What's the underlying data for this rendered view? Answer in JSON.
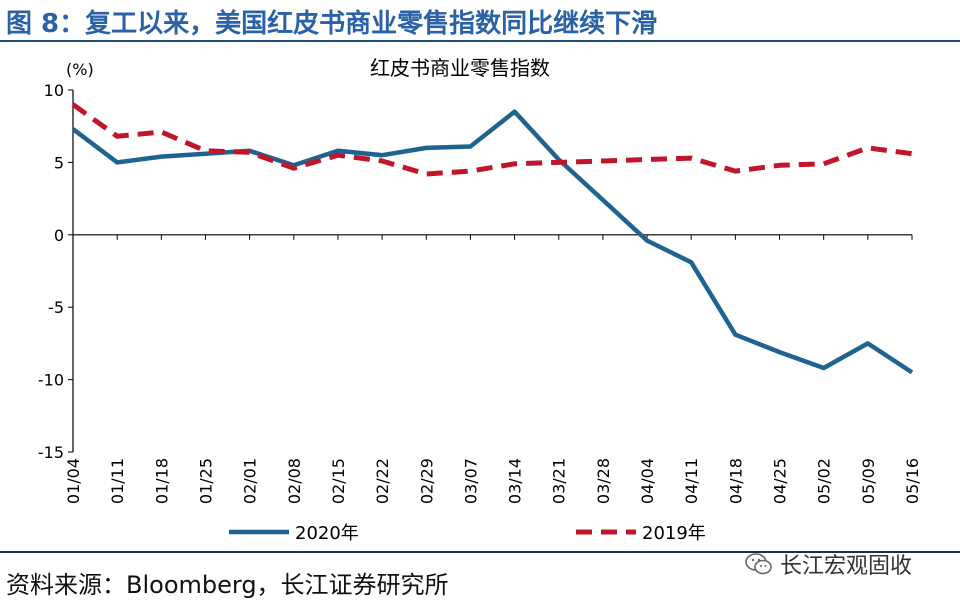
{
  "figure": {
    "title": "图 8：复工以来，美国红皮书商业零售指数同比继续下滑",
    "source": "资料来源：Bloomberg，长江证券研究所",
    "watermark": "长江宏观固收",
    "watermark_icon": "wechat-icon"
  },
  "colors": {
    "title": "#2a62a5",
    "series_2020": "#1f6391",
    "series_2019": "#c0152a"
  },
  "chart_data": {
    "type": "line",
    "title": "红皮书商业零售指数",
    "unit_label": "(%)",
    "categories": [
      "01/04",
      "01/11",
      "01/18",
      "01/25",
      "02/01",
      "02/08",
      "02/15",
      "02/22",
      "02/29",
      "03/07",
      "03/14",
      "03/21",
      "03/28",
      "04/04",
      "04/11",
      "04/18",
      "04/25",
      "05/02",
      "05/09",
      "05/16"
    ],
    "yticks": [
      10,
      5,
      0,
      -5,
      -10,
      -15
    ],
    "ylim": [
      -15,
      10
    ],
    "series": [
      {
        "name": "2020年",
        "style": "solid",
        "values": [
          7.3,
          5.0,
          5.4,
          5.6,
          5.8,
          4.8,
          5.8,
          5.5,
          6.0,
          6.1,
          8.5,
          5.2,
          2.4,
          -0.4,
          -1.9,
          -6.9,
          -8.1,
          -9.2,
          -7.5,
          -9.5
        ]
      },
      {
        "name": "2019年",
        "style": "dashed",
        "values": [
          9.0,
          6.8,
          7.1,
          5.8,
          5.7,
          4.6,
          5.5,
          5.1,
          4.2,
          4.4,
          4.9,
          5.0,
          5.1,
          5.2,
          5.3,
          4.4,
          4.8,
          4.9,
          6.0,
          5.6
        ]
      }
    ],
    "legend_position": "bottom"
  }
}
